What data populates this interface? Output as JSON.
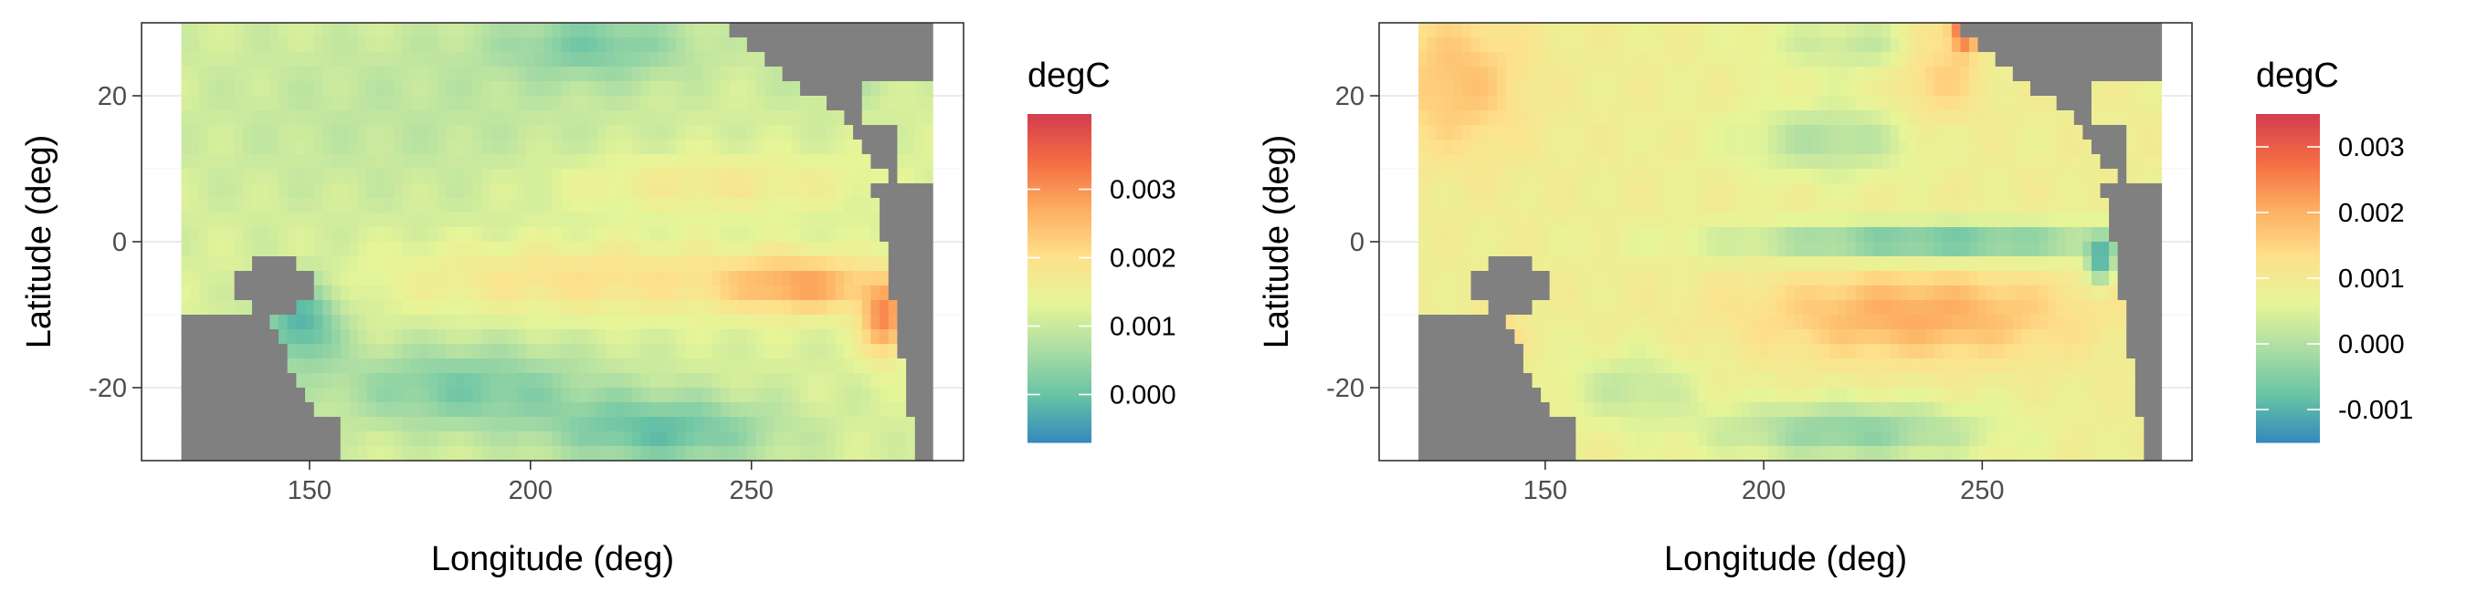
{
  "chart_data": [
    {
      "type": "heatmap",
      "xlabel": "Longitude (deg)",
      "ylabel": "Latitude (deg)",
      "xlim": [
        112,
        298
      ],
      "ylim": [
        -30,
        30
      ],
      "x_ticks": [
        150,
        200,
        250
      ],
      "x_tick_labels": [
        "150",
        "200",
        "250"
      ],
      "y_ticks": [
        20,
        0,
        -20
      ],
      "y_tick_labels": [
        "20",
        "0",
        "-20"
      ],
      "grid": true,
      "land_color": "#808080",
      "legend": {
        "title": "degC",
        "position": "right",
        "min": -0.0007,
        "max": 0.0041,
        "ticks": [
          0.003,
          0.002,
          0.001,
          0.0
        ],
        "tick_labels": [
          "0.003",
          "0.002",
          "0.001",
          "0.000"
        ],
        "colors": [
          "#3288bd",
          "#66c2a5",
          "#abdda4",
          "#e6f598",
          "#fee08b",
          "#fdae61",
          "#f46d43",
          "#d53e4f"
        ]
      },
      "grid_data": {
        "lon_min": 122,
        "lon_step": 2,
        "lon_count": 85,
        "lat_max": 29,
        "lat_step": -2,
        "lat_count": 30,
        "base": 0.0012,
        "features": [
          {
            "lon": 175,
            "lat": 18,
            "r_lon": 55,
            "r_lat": 14,
            "amp": -0.0003
          },
          {
            "lon": 215,
            "lat": 27,
            "r_lon": 22,
            "r_lat": 5,
            "amp": -0.0009
          },
          {
            "lon": 270,
            "lat": 26,
            "r_lon": 12,
            "r_lat": 6,
            "amp": -0.0008
          },
          {
            "lon": 148,
            "lat": -11,
            "r_lon": 9,
            "r_lat": 6,
            "amp": -0.0014
          },
          {
            "lon": 185,
            "lat": -20,
            "r_lon": 30,
            "r_lat": 6,
            "amp": -0.001
          },
          {
            "lon": 230,
            "lat": -26,
            "r_lon": 25,
            "r_lat": 5,
            "amp": -0.0012
          },
          {
            "lon": 215,
            "lat": -5,
            "r_lon": 45,
            "r_lat": 5,
            "amp": 0.0008
          },
          {
            "lon": 262,
            "lat": -6,
            "r_lon": 18,
            "r_lat": 4,
            "amp": 0.0014
          },
          {
            "lon": 280,
            "lat": -11,
            "r_lon": 5,
            "r_lat": 5,
            "amp": 0.0018
          },
          {
            "lon": 240,
            "lat": 8,
            "r_lon": 35,
            "r_lat": 4,
            "amp": 0.0006
          }
        ]
      }
    },
    {
      "type": "heatmap",
      "xlabel": "Longitude (deg)",
      "ylabel": "Latitude (deg)",
      "xlim": [
        112,
        298
      ],
      "ylim": [
        -30,
        30
      ],
      "x_ticks": [
        150,
        200,
        250
      ],
      "x_tick_labels": [
        "150",
        "200",
        "250"
      ],
      "y_ticks": [
        20,
        0,
        -20
      ],
      "y_tick_labels": [
        "20",
        "0",
        "-20"
      ],
      "grid": true,
      "land_color": "#808080",
      "legend": {
        "title": "degC",
        "position": "right",
        "min": -0.0015,
        "max": 0.0035,
        "ticks": [
          0.003,
          0.002,
          0.001,
          0.0,
          -0.001
        ],
        "tick_labels": [
          "0.003",
          "0.002",
          "0.001",
          "0.000",
          "-0.001"
        ],
        "colors": [
          "#3288bd",
          "#66c2a5",
          "#abdda4",
          "#e6f598",
          "#fee08b",
          "#fdae61",
          "#f46d43",
          "#d53e4f"
        ]
      },
      "grid_data": {
        "lon_min": 122,
        "lon_step": 2,
        "lon_count": 85,
        "lat_max": 29,
        "lat_step": -2,
        "lat_count": 30,
        "base": 0.0009,
        "features": [
          {
            "lon": 130,
            "lat": 22,
            "r_lon": 15,
            "r_lat": 10,
            "amp": 0.0009
          },
          {
            "lon": 240,
            "lat": 25,
            "r_lon": 10,
            "r_lat": 8,
            "amp": 0.0009
          },
          {
            "lon": 246,
            "lat": 29,
            "r_lon": 3,
            "r_lat": 3,
            "amp": 0.0022
          },
          {
            "lon": 215,
            "lat": 14,
            "r_lon": 20,
            "r_lat": 5,
            "amp": -0.0009
          },
          {
            "lon": 225,
            "lat": 27,
            "r_lon": 25,
            "r_lat": 4,
            "amp": -0.0007
          },
          {
            "lon": 240,
            "lat": 0,
            "r_lon": 45,
            "r_lat": 2.5,
            "amp": -0.0017
          },
          {
            "lon": 235,
            "lat": -10,
            "r_lon": 35,
            "r_lat": 6,
            "amp": 0.0012
          },
          {
            "lon": 220,
            "lat": -26,
            "r_lon": 30,
            "r_lat": 4,
            "amp": -0.0013
          },
          {
            "lon": 170,
            "lat": -20,
            "r_lon": 15,
            "r_lat": 5,
            "amp": -0.0007
          },
          {
            "lon": 139,
            "lat": -15,
            "r_lon": 4,
            "r_lat": 4,
            "amp": 0.0018
          },
          {
            "lon": 277,
            "lat": -3,
            "r_lon": 3,
            "r_lat": 3,
            "amp": -0.0018
          }
        ]
      }
    }
  ]
}
